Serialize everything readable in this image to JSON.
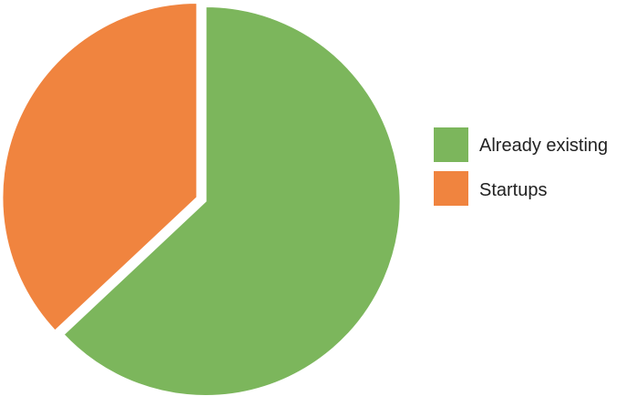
{
  "chart_data": {
    "type": "pie",
    "title": "",
    "slices": [
      {
        "label": "Already existing",
        "value": 63,
        "color": "#7cb65c"
      },
      {
        "label": "Startups",
        "value": 37,
        "color": "#f0843f"
      }
    ],
    "legend_position": "right"
  }
}
